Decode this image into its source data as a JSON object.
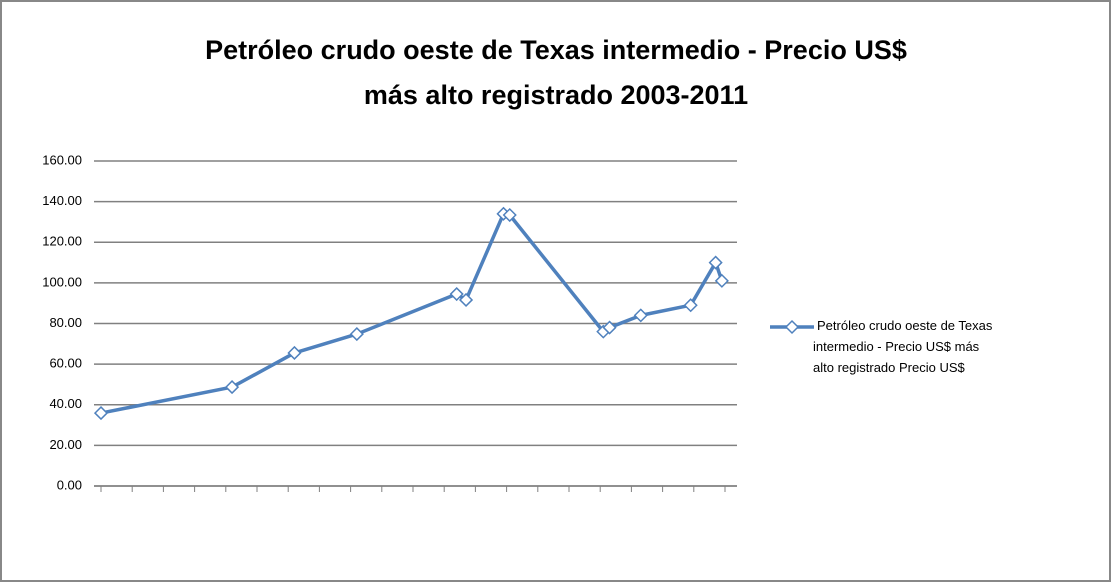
{
  "chart_data": {
    "type": "line",
    "title": [
      "Petróleo crudo oeste de Texas intermedio - Precio US$",
      "más alto registrado 2003-2011"
    ],
    "x": [
      0,
      4.2,
      6.2,
      8.2,
      11.4,
      11.7,
      12.9,
      13.1,
      16.1,
      16.3,
      17.3,
      18.9,
      19.7,
      19.9
    ],
    "xlim": [
      0,
      20
    ],
    "xticks": [
      0,
      1,
      2,
      3,
      4,
      5,
      6,
      7,
      8,
      9,
      10,
      11,
      12,
      13,
      14,
      15,
      16,
      17,
      18,
      19,
      20
    ],
    "series": [
      {
        "name": "Petróleo crudo oeste de Texas intermedio - Precio US$ más alto registrado Precio US$",
        "color": "#4f81bd",
        "values": [
          35.9,
          48.7,
          65.5,
          74.8,
          94.5,
          91.6,
          134,
          133.4,
          76,
          78,
          84,
          89,
          110,
          101
        ]
      }
    ],
    "ylim": [
      0,
      160
    ],
    "yticks": [
      {
        "value": 0,
        "label": "0.00"
      },
      {
        "value": 20,
        "label": "20.00"
      },
      {
        "value": 40,
        "label": "40.00"
      },
      {
        "value": 60,
        "label": "60.00"
      },
      {
        "value": 80,
        "label": "80.00"
      },
      {
        "value": 100,
        "label": "100.00"
      },
      {
        "value": 120,
        "label": "120.00"
      },
      {
        "value": 140,
        "label": "140.00"
      },
      {
        "value": 160,
        "label": "160.00"
      }
    ],
    "grid": true,
    "legend": "right"
  }
}
